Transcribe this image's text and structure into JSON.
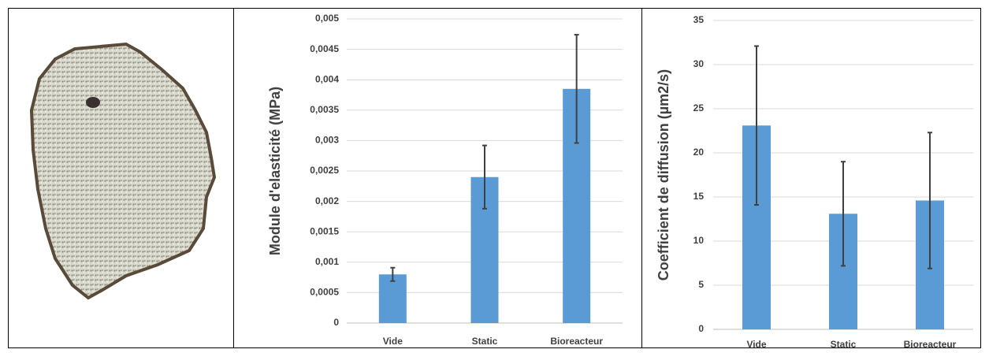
{
  "chart_data": [
    {
      "type": "bar",
      "y_label": "Module d'elasticité (MPa)",
      "categories": [
        "Vide",
        "Static",
        "Bioreacteur"
      ],
      "values": [
        0.0008,
        0.0024,
        0.00385
      ],
      "errors": [
        0.00011,
        0.00052,
        0.00089
      ],
      "color": "#5b9bd5",
      "error_color": "#404040",
      "ylim": [
        0,
        0.005
      ],
      "yticks": [
        0,
        {
          "value": 0.0005,
          "label": "0,0005"
        },
        {
          "value": 0.001,
          "label": "0,001"
        },
        {
          "value": 0.0015,
          "label": "0,0015"
        },
        {
          "value": 0.002,
          "label": "0,002"
        },
        {
          "value": 0.0025,
          "label": "0,0025"
        },
        {
          "value": 0.003,
          "label": "0,003"
        },
        {
          "value": 0.0035,
          "label": "0,0035"
        },
        {
          "value": 0.004,
          "label": "0,004"
        },
        {
          "value": 0.0045,
          "label": "0,0045"
        },
        {
          "value": 0.005,
          "label": "0,005"
        }
      ],
      "grid": true
    },
    {
      "type": "bar",
      "y_label": "Coefficient de diffusion (µm2/s)",
      "categories": [
        "Vide",
        "Static",
        "Bioreacteur"
      ],
      "values": [
        23.1,
        13.1,
        14.6
      ],
      "errors": [
        9,
        5.9,
        7.7
      ],
      "color": "#5b9bd5",
      "error_color": "#404040",
      "ylim": [
        0,
        35
      ],
      "yticks": [
        0,
        5,
        10,
        15,
        20,
        25,
        30,
        35
      ],
      "grid": true
    }
  ]
}
